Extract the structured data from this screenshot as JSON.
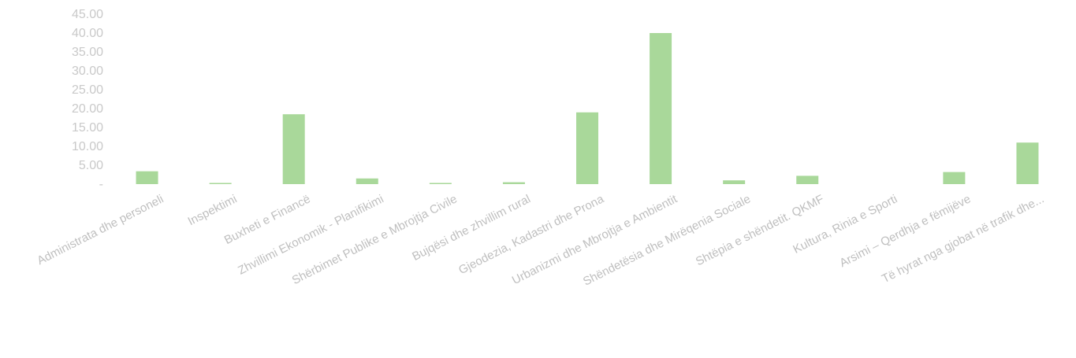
{
  "chart_data": {
    "type": "bar",
    "title": "",
    "xlabel": "",
    "ylabel": "",
    "ylim": [
      0,
      45
    ],
    "yticks": [
      "-",
      "5.00",
      "10.00",
      "15.00",
      "20.00",
      "25.00",
      "30.00",
      "35.00",
      "40.00",
      "45.00"
    ],
    "grid": false,
    "legend": "none",
    "categories": [
      "Administrata dhe personeli",
      "Inspektimi",
      "Buxheti e Financë",
      "Zhvillimi Ekonomik - Planifikimi",
      "Shërbimet Publike e Mbrojtja Civile",
      "Bujqësi dhe zhvillim rural",
      "Gjeodezia, Kadastri dhe Prona",
      "Urbanizmi dhe Mbrojtja e Ambientit",
      "Shëndetësia dhe Mirëqenia Sociale",
      "Shtëpia e shëndetit. QKMF",
      "Kultura, Rinia e Sporti",
      "Arsimi – Qerdhja e fëmijëve",
      "Të hyrat nga gjobat në trafik dhe..."
    ],
    "values": [
      3.4,
      0.1,
      18.5,
      1.5,
      0.1,
      0.5,
      19.0,
      40.0,
      1.0,
      2.2,
      0.0,
      3.2,
      11.0
    ],
    "colors": {
      "bar": "#a9d89a",
      "axis_text": "#c9c9c9",
      "category_text": "#bfbfbf"
    }
  }
}
